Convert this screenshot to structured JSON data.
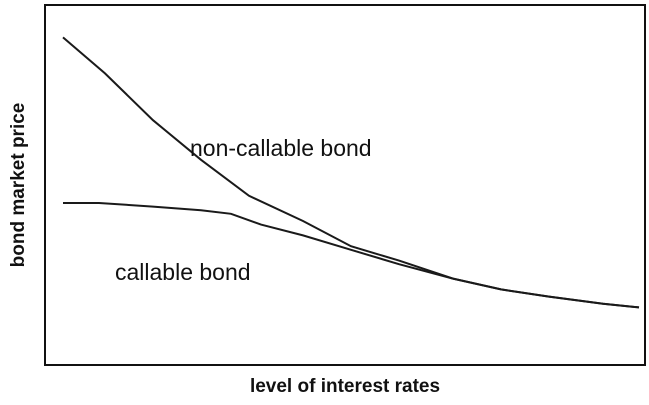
{
  "chart_data": {
    "type": "line",
    "x_label": "level of interest rates",
    "y_label": "bond market price",
    "xlim": [
      0,
      100
    ],
    "ylim": [
      0,
      100
    ],
    "grid": false,
    "annotations": [
      "non-callable bond",
      "callable bond"
    ],
    "series": [
      {
        "name": "non-callable bond",
        "color": "#1a1a1a",
        "x": [
          3,
          10,
          18,
          26,
          34,
          43,
          51,
          59,
          68,
          76,
          84,
          93,
          99
        ],
        "values": [
          91,
          81,
          68,
          57,
          47,
          40,
          33,
          29,
          24,
          21,
          19,
          17,
          16
        ]
      },
      {
        "name": "callable bond",
        "color": "#1a1a1a",
        "x": [
          3,
          9,
          18,
          26,
          31,
          36,
          43,
          51,
          59,
          68,
          76,
          84,
          93,
          99
        ],
        "values": [
          45,
          45,
          44,
          43,
          42,
          39,
          36,
          32,
          28,
          24,
          21,
          19,
          17,
          16
        ]
      }
    ]
  }
}
